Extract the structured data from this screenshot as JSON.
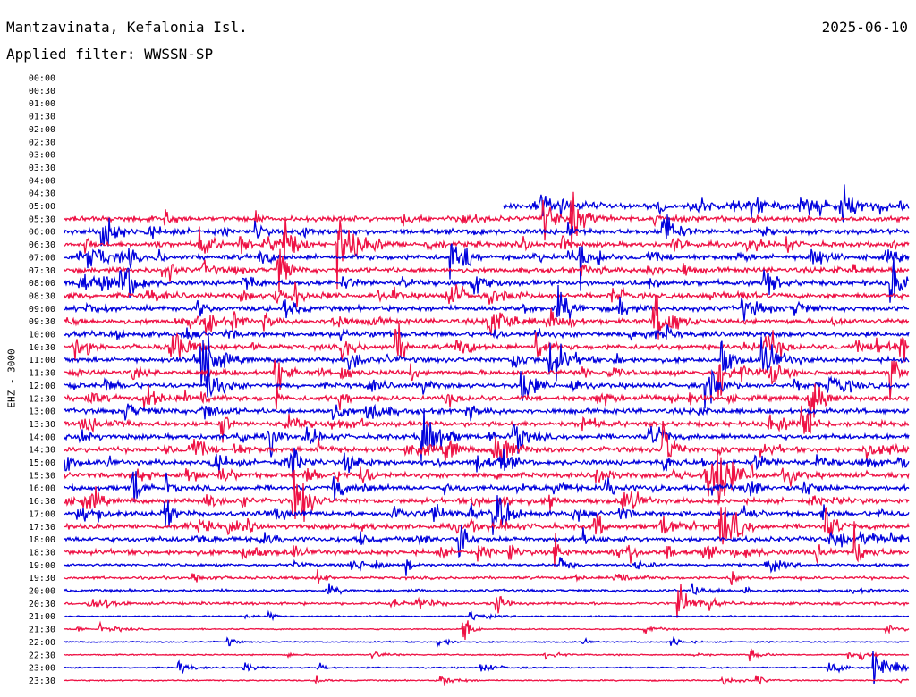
{
  "header": {
    "station": "Mantzavinata, Kefalonia Isl.",
    "date": "2025-06-10",
    "filter": "Applied filter: WWSSN-SP",
    "channel": "EHZ - 3000"
  },
  "chart_data": {
    "type": "line",
    "title": "Mantzavinata, Kefalonia Isl.",
    "ylabel": "EHZ - 3000",
    "rows": [
      "00:00",
      "00:30",
      "01:00",
      "01:30",
      "02:00",
      "02:30",
      "03:00",
      "03:30",
      "04:00",
      "04:30",
      "05:00",
      "05:30",
      "06:00",
      "06:30",
      "07:00",
      "07:30",
      "08:00",
      "08:30",
      "09:00",
      "09:30",
      "10:00",
      "10:30",
      "11:00",
      "11:30",
      "12:00",
      "12:30",
      "13:00",
      "13:30",
      "14:00",
      "14:30",
      "15:00",
      "15:30",
      "16:00",
      "16:30",
      "17:00",
      "17:30",
      "18:00",
      "18:30",
      "19:00",
      "19:30",
      "20:00",
      "20:30",
      "21:00",
      "21:30",
      "22:00",
      "22:30",
      "23:00",
      "23:30"
    ],
    "row_minutes": 30,
    "trace_colors": [
      "#0000dd",
      "#ee1144"
    ],
    "data_start_row": "05:00",
    "data_start_fraction": 0.52,
    "grid": false
  }
}
